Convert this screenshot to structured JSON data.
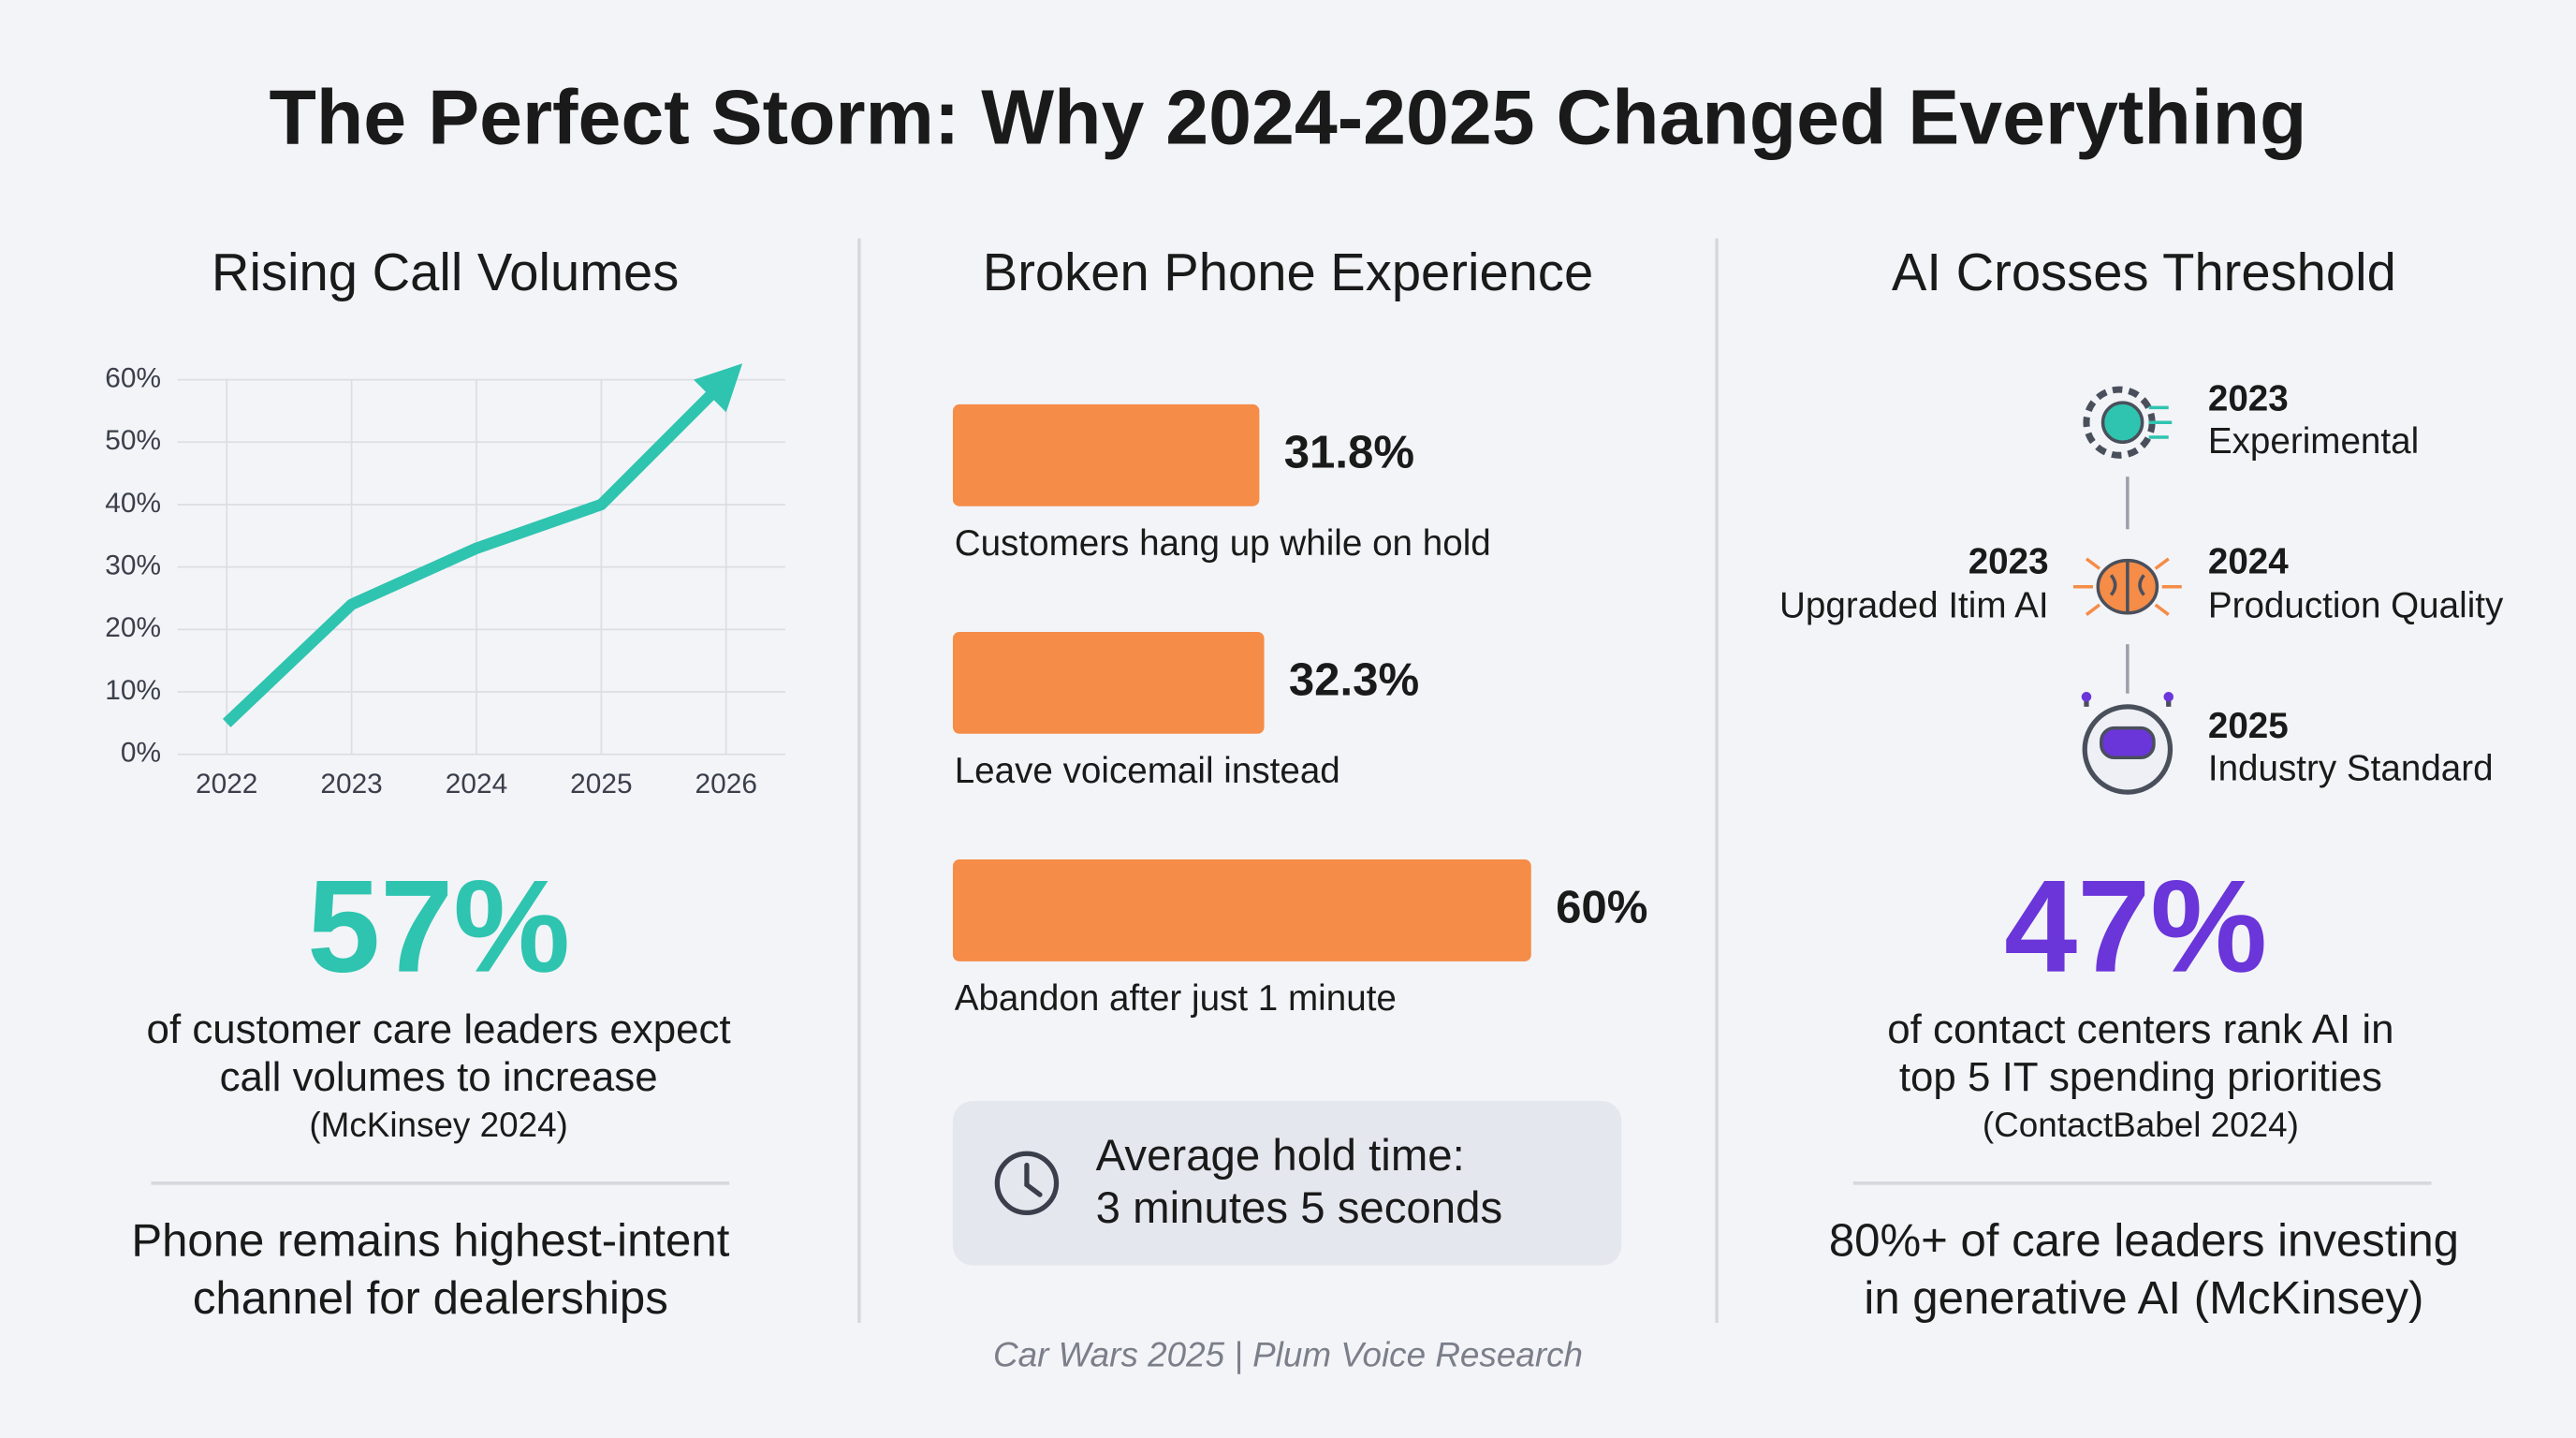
{
  "title": "The Perfect Storm: Why 2024-2025 Changed Everything",
  "chart_data": [
    {
      "type": "line",
      "title": "Rising Call Volumes",
      "categories": [
        "2022",
        "2023",
        "2024",
        "2025",
        "2026"
      ],
      "values": [
        5,
        24,
        33,
        40,
        60
      ],
      "color": "#2ec4b0",
      "ylim": [
        0,
        60
      ],
      "yticks": [
        {
          "value": 0,
          "label": "0%"
        },
        {
          "value": 10,
          "label": "10%"
        },
        {
          "value": 20,
          "label": "20%"
        },
        {
          "value": 30,
          "label": "30%"
        },
        {
          "value": 40,
          "label": "40%"
        },
        {
          "value": 50,
          "label": "50%"
        },
        {
          "value": 60,
          "label": "60%"
        }
      ],
      "grid": true
    },
    {
      "type": "bar",
      "title": "Broken Phone Experience",
      "orientation": "horizontal",
      "categories": [
        "Customers hang up while on hold",
        "Leave voicemail instead",
        "Abandon after just 1 minute"
      ],
      "values": [
        31.8,
        32.3,
        60
      ],
      "value_labels": [
        "31.8%",
        "32.3%",
        "60%"
      ],
      "color": "#f58c48"
    }
  ],
  "stat_left": {
    "value": "57%",
    "lines": [
      "of customer care leaders expect",
      "call volumes to increase",
      "(McKinsey 2024)"
    ]
  },
  "note_left": [
    "Phone remains highest-intent",
    "channel for dealerships"
  ],
  "hold_time": [
    "Average hold time:",
    "3 minutes 5 seconds"
  ],
  "ai_panel": {
    "title": "AI Crosses Threshold",
    "timeline": [
      {
        "year": "2023",
        "label": "Experimental"
      },
      {
        "year": "2023",
        "label": "Upgraded Itim AI"
      },
      {
        "year": "2024",
        "label": "Production Quality"
      },
      {
        "year": "2025",
        "label": "Industry Standard"
      }
    ]
  },
  "stat_right": {
    "value": "47%",
    "lines": [
      "of contact centers rank AI in",
      "top 5 IT spending priorities",
      "(ContactBabel 2024)"
    ]
  },
  "note_right": [
    "80%+ of care leaders investing",
    "in generative AI (McKinsey)"
  ],
  "footer": "Car Wars 2025 | Plum Voice Research"
}
